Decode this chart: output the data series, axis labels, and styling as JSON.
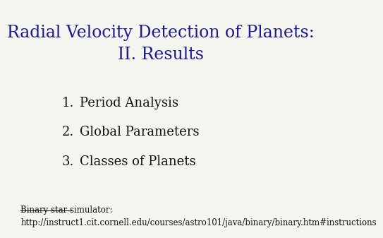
{
  "title_line1": "Radial Velocity Detection of Planets:",
  "title_line2": "II. Results",
  "title_color": "#1a1a8c",
  "title_fontsize": 17,
  "items": [
    "Period Analysis",
    "Global Parameters",
    "Classes of Planets"
  ],
  "items_color": "#111111",
  "items_fontsize": 13,
  "footnote_label": "Binary star simulator:",
  "footnote_url": "http://instruct1.cit.cornell.edu/courses/astro101/java/binary/binary.htm#instructions",
  "footnote_fontsize": 8.5,
  "footnote_color": "#111111",
  "background_color": "#f5f5f0"
}
